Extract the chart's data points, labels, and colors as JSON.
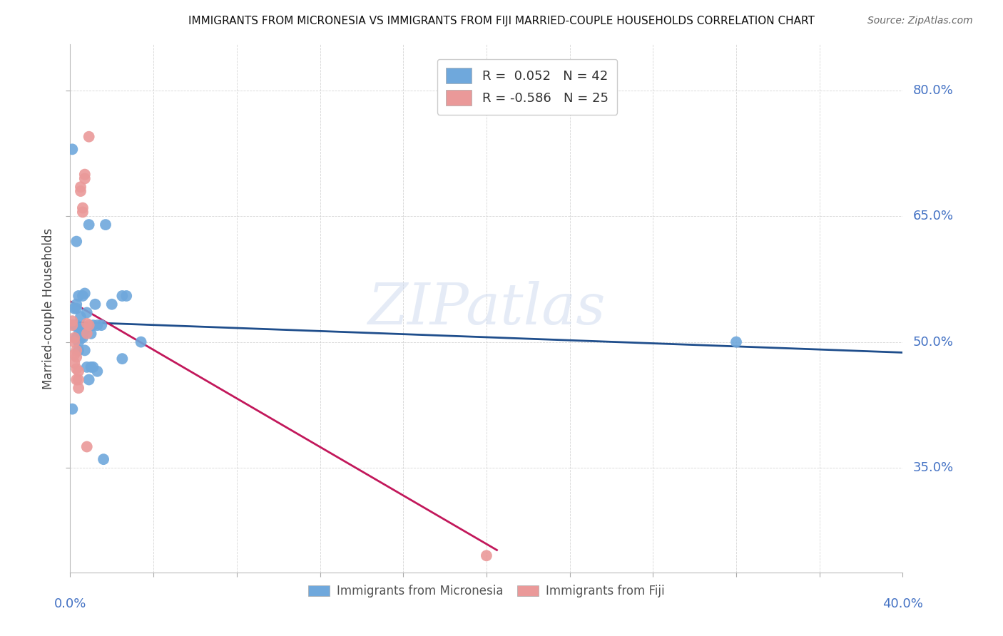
{
  "title": "IMMIGRANTS FROM MICRONESIA VS IMMIGRANTS FROM FIJI MARRIED-COUPLE HOUSEHOLDS CORRELATION CHART",
  "source": "Source: ZipAtlas.com",
  "ylabel": "Married-couple Households",
  "micronesia_color": "#6fa8dc",
  "fiji_color": "#ea9999",
  "micronesia_line_color": "#1f4e8c",
  "fiji_line_color": "#c2185b",
  "watermark": "ZIPatlas",
  "micronesia_x": [
    0.001,
    0.001,
    0.002,
    0.002,
    0.003,
    0.003,
    0.003,
    0.003,
    0.003,
    0.004,
    0.004,
    0.004,
    0.004,
    0.005,
    0.005,
    0.005,
    0.006,
    0.006,
    0.006,
    0.007,
    0.007,
    0.007,
    0.008,
    0.008,
    0.009,
    0.009,
    0.01,
    0.01,
    0.011,
    0.011,
    0.012,
    0.013,
    0.013,
    0.015,
    0.016,
    0.017,
    0.02,
    0.025,
    0.025,
    0.027,
    0.034,
    0.32
  ],
  "micronesia_y": [
    0.42,
    0.73,
    0.52,
    0.54,
    0.505,
    0.52,
    0.54,
    0.545,
    0.62,
    0.49,
    0.5,
    0.515,
    0.555,
    0.505,
    0.515,
    0.53,
    0.505,
    0.515,
    0.555,
    0.49,
    0.515,
    0.558,
    0.47,
    0.535,
    0.455,
    0.64,
    0.47,
    0.51,
    0.47,
    0.52,
    0.545,
    0.465,
    0.52,
    0.52,
    0.36,
    0.64,
    0.545,
    0.555,
    0.48,
    0.555,
    0.5,
    0.5
  ],
  "fiji_x": [
    0.001,
    0.001,
    0.002,
    0.002,
    0.002,
    0.002,
    0.003,
    0.003,
    0.003,
    0.003,
    0.004,
    0.004,
    0.004,
    0.005,
    0.005,
    0.006,
    0.006,
    0.007,
    0.007,
    0.008,
    0.008,
    0.008,
    0.009,
    0.009,
    0.2
  ],
  "fiji_y": [
    0.52,
    0.525,
    0.475,
    0.485,
    0.5,
    0.505,
    0.455,
    0.468,
    0.482,
    0.49,
    0.445,
    0.455,
    0.465,
    0.68,
    0.685,
    0.655,
    0.66,
    0.695,
    0.7,
    0.375,
    0.51,
    0.522,
    0.52,
    0.745,
    0.245
  ],
  "xlim": [
    0.0,
    0.4
  ],
  "ylim": [
    0.225,
    0.855
  ],
  "yticks": [
    0.35,
    0.5,
    0.65,
    0.8
  ],
  "ytick_labels": [
    "35.0%",
    "50.0%",
    "65.0%",
    "80.0%"
  ],
  "xtick_positions": [
    0.0,
    0.04,
    0.08,
    0.12,
    0.16,
    0.2,
    0.24,
    0.28,
    0.32,
    0.36,
    0.4
  ],
  "title_fontsize": 11,
  "source_fontsize": 10,
  "label_fontsize": 13,
  "legend_fontsize": 13
}
